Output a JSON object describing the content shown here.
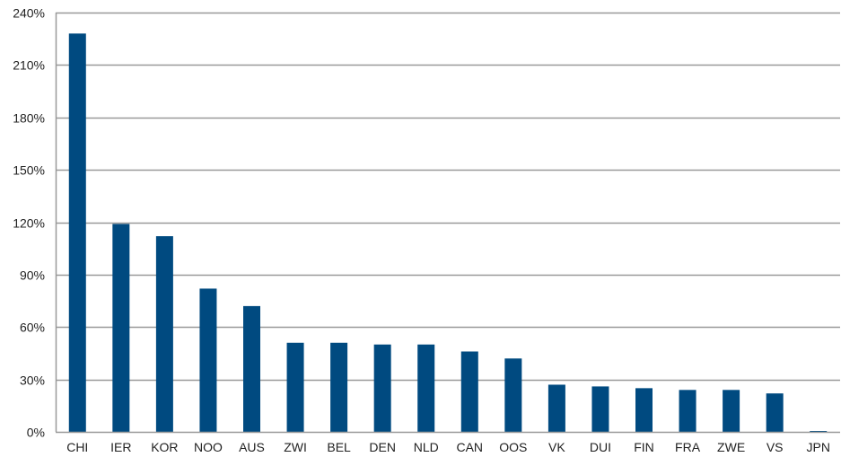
{
  "chart_data": {
    "type": "bar",
    "categories": [
      "CHI",
      "IER",
      "KOR",
      "NOO",
      "AUS",
      "ZWI",
      "BEL",
      "DEN",
      "NLD",
      "CAN",
      "OOS",
      "VK",
      "DUI",
      "FIN",
      "FRA",
      "ZWE",
      "VS",
      "JPN"
    ],
    "values": [
      228,
      119,
      112,
      82,
      72,
      51,
      51,
      50,
      50,
      46,
      42,
      27,
      26,
      25,
      24,
      24,
      22,
      0
    ],
    "ylim": [
      0,
      240
    ],
    "yticks": [
      0,
      30,
      60,
      90,
      120,
      150,
      180,
      210,
      240
    ],
    "ytick_labels": [
      "0%",
      "30%",
      "60%",
      "90%",
      "120%",
      "150%",
      "180%",
      "210%",
      "240%"
    ],
    "title": "",
    "xlabel": "",
    "ylabel": "",
    "grid": true,
    "bar_color": "#004a80",
    "grid_color": "#999999"
  }
}
